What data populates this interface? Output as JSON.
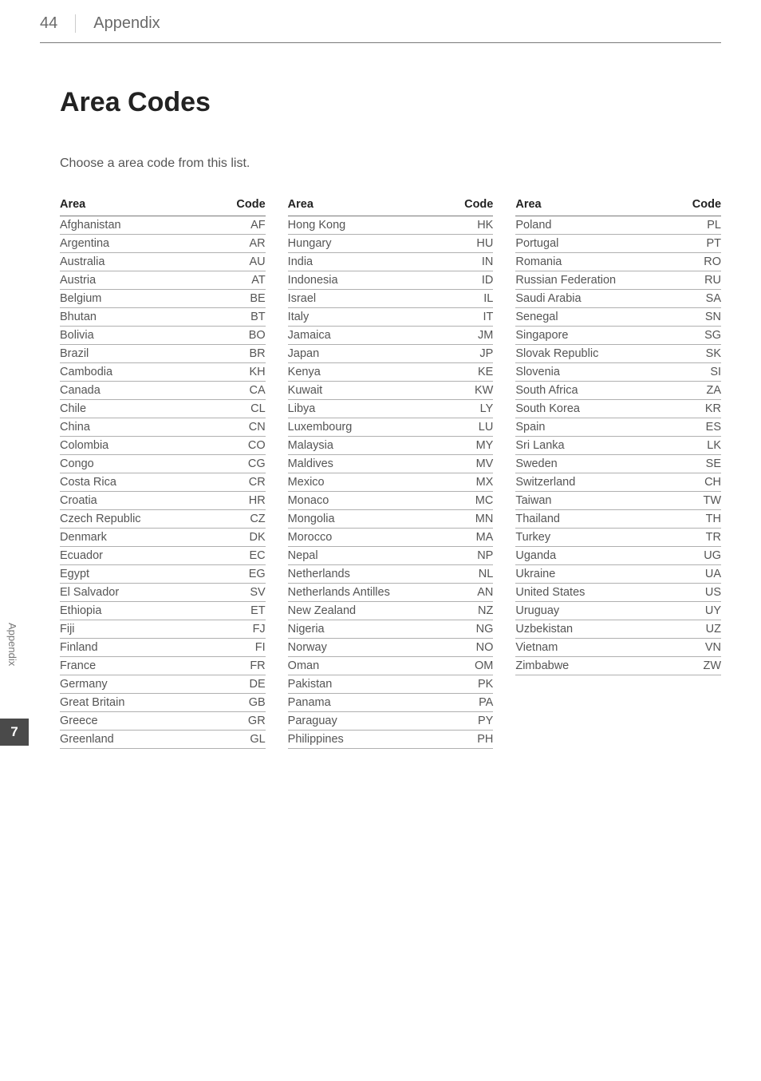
{
  "header": {
    "page_number": "44",
    "section_name": "Appendix"
  },
  "title": "Area Codes",
  "subtitle": "Choose a area code from this list.",
  "table_headers": {
    "area": "Area",
    "code": "Code"
  },
  "columns": [
    [
      {
        "area": "Afghanistan",
        "code": "AF"
      },
      {
        "area": "Argentina",
        "code": "AR"
      },
      {
        "area": "Australia",
        "code": "AU"
      },
      {
        "area": "Austria",
        "code": "AT"
      },
      {
        "area": "Belgium",
        "code": "BE"
      },
      {
        "area": "Bhutan",
        "code": "BT"
      },
      {
        "area": "Bolivia",
        "code": "BO"
      },
      {
        "area": "Brazil",
        "code": "BR"
      },
      {
        "area": "Cambodia",
        "code": "KH"
      },
      {
        "area": "Canada",
        "code": "CA"
      },
      {
        "area": "Chile",
        "code": "CL"
      },
      {
        "area": "China",
        "code": "CN"
      },
      {
        "area": "Colombia",
        "code": "CO"
      },
      {
        "area": "Congo",
        "code": "CG"
      },
      {
        "area": "Costa Rica",
        "code": "CR"
      },
      {
        "area": "Croatia",
        "code": "HR"
      },
      {
        "area": "Czech Republic",
        "code": "CZ"
      },
      {
        "area": "Denmark",
        "code": "DK"
      },
      {
        "area": "Ecuador",
        "code": "EC"
      },
      {
        "area": "Egypt",
        "code": "EG"
      },
      {
        "area": "El Salvador",
        "code": "SV"
      },
      {
        "area": "Ethiopia",
        "code": "ET"
      },
      {
        "area": "Fiji",
        "code": "FJ"
      },
      {
        "area": "Finland",
        "code": "FI"
      },
      {
        "area": "France",
        "code": "FR"
      },
      {
        "area": "Germany",
        "code": "DE"
      },
      {
        "area": "Great Britain",
        "code": "GB"
      },
      {
        "area": "Greece",
        "code": "GR"
      },
      {
        "area": "Greenland",
        "code": "GL"
      }
    ],
    [
      {
        "area": "Hong Kong",
        "code": "HK"
      },
      {
        "area": "Hungary",
        "code": "HU"
      },
      {
        "area": "India",
        "code": "IN"
      },
      {
        "area": "Indonesia",
        "code": "ID"
      },
      {
        "area": "Israel",
        "code": "IL"
      },
      {
        "area": "Italy",
        "code": "IT"
      },
      {
        "area": "Jamaica",
        "code": "JM"
      },
      {
        "area": "Japan",
        "code": "JP"
      },
      {
        "area": "Kenya",
        "code": "KE"
      },
      {
        "area": "Kuwait",
        "code": "KW"
      },
      {
        "area": "Libya",
        "code": "LY"
      },
      {
        "area": "Luxembourg",
        "code": "LU"
      },
      {
        "area": "Malaysia",
        "code": "MY"
      },
      {
        "area": "Maldives",
        "code": "MV"
      },
      {
        "area": "Mexico",
        "code": "MX"
      },
      {
        "area": "Monaco",
        "code": "MC"
      },
      {
        "area": "Mongolia",
        "code": "MN"
      },
      {
        "area": "Morocco",
        "code": "MA"
      },
      {
        "area": "Nepal",
        "code": "NP"
      },
      {
        "area": "Netherlands",
        "code": "NL"
      },
      {
        "area": "Netherlands Antilles",
        "code": "AN"
      },
      {
        "area": "New Zealand",
        "code": "NZ"
      },
      {
        "area": "Nigeria",
        "code": "NG"
      },
      {
        "area": "Norway",
        "code": "NO"
      },
      {
        "area": "Oman",
        "code": "OM"
      },
      {
        "area": "Pakistan",
        "code": "PK"
      },
      {
        "area": "Panama",
        "code": "PA"
      },
      {
        "area": "Paraguay",
        "code": "PY"
      },
      {
        "area": "Philippines",
        "code": "PH"
      }
    ],
    [
      {
        "area": "Poland",
        "code": "PL"
      },
      {
        "area": "Portugal",
        "code": "PT"
      },
      {
        "area": "Romania",
        "code": "RO"
      },
      {
        "area": "Russian Federation",
        "code": "RU"
      },
      {
        "area": "Saudi Arabia",
        "code": "SA"
      },
      {
        "area": "Senegal",
        "code": "SN"
      },
      {
        "area": "Singapore",
        "code": "SG"
      },
      {
        "area": "Slovak Republic",
        "code": "SK"
      },
      {
        "area": "Slovenia",
        "code": "SI"
      },
      {
        "area": "South Africa",
        "code": "ZA"
      },
      {
        "area": "South Korea",
        "code": "KR"
      },
      {
        "area": "Spain",
        "code": "ES"
      },
      {
        "area": "Sri Lanka",
        "code": "LK"
      },
      {
        "area": "Sweden",
        "code": "SE"
      },
      {
        "area": "Switzerland",
        "code": "CH"
      },
      {
        "area": "Taiwan",
        "code": "TW"
      },
      {
        "area": "Thailand",
        "code": "TH"
      },
      {
        "area": "Turkey",
        "code": "TR"
      },
      {
        "area": "Uganda",
        "code": "UG"
      },
      {
        "area": "Ukraine",
        "code": "UA"
      },
      {
        "area": "United States",
        "code": "US"
      },
      {
        "area": "Uruguay",
        "code": "UY"
      },
      {
        "area": "Uzbekistan",
        "code": "UZ"
      },
      {
        "area": "Vietnam",
        "code": "VN"
      },
      {
        "area": "Zimbabwe",
        "code": "ZW"
      }
    ]
  ],
  "side_label": "Appendix",
  "chapter_badge": "7",
  "styles": {
    "background_color": "#ffffff",
    "title_color": "#222222",
    "title_fontsize": 34,
    "body_text_color": "#555555",
    "header_border_color": "#7a7a7a",
    "row_border_color": "#b0b0b0",
    "badge_bg": "#4a4a4a",
    "badge_fg": "#ffffff"
  }
}
